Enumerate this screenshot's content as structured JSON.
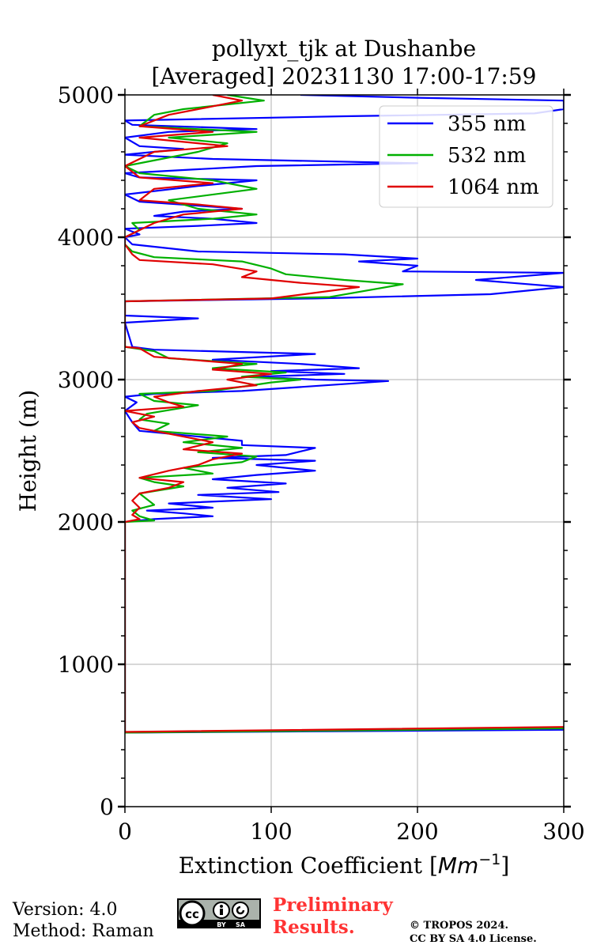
{
  "chart_data": {
    "type": "line",
    "title_line1": "pollyxt_tjk at Dushanbe",
    "title_line2": "[Averaged] 20231130 17:00-17:59",
    "xlabel_text": "Extinction Coefficient [",
    "xlabel_unit": "Mm",
    "xlabel_exp": "−1",
    "xlabel_close": "]",
    "ylabel": "Height (m)",
    "xlim": [
      0,
      300
    ],
    "ylim": [
      0,
      5000
    ],
    "xticks": [
      0,
      100,
      200,
      300
    ],
    "yticks": [
      0,
      1000,
      2000,
      3000,
      4000,
      5000
    ],
    "grid": true,
    "legend_position": "upper-right",
    "series": [
      {
        "name": "355 nm",
        "color": "#0000ff",
        "points": [
          [
            300,
            540
          ],
          [
            0,
            520
          ],
          [
            0,
            2000
          ],
          [
            20,
            2020
          ],
          [
            60,
            2040
          ],
          [
            40,
            2060
          ],
          [
            15,
            2080
          ],
          [
            60,
            2100
          ],
          [
            30,
            2130
          ],
          [
            100,
            2160
          ],
          [
            50,
            2190
          ],
          [
            105,
            2210
          ],
          [
            70,
            2240
          ],
          [
            110,
            2270
          ],
          [
            60,
            2300
          ],
          [
            90,
            2330
          ],
          [
            130,
            2360
          ],
          [
            90,
            2400
          ],
          [
            130,
            2430
          ],
          [
            60,
            2450
          ],
          [
            110,
            2470
          ],
          [
            130,
            2520
          ],
          [
            80,
            2540
          ],
          [
            80,
            2570
          ],
          [
            10,
            2640
          ],
          [
            5,
            2700
          ],
          [
            0,
            2780
          ],
          [
            8,
            2840
          ],
          [
            0,
            2880
          ],
          [
            20,
            2900
          ],
          [
            80,
            2920
          ],
          [
            180,
            2990
          ],
          [
            130,
            3000
          ],
          [
            90,
            3020
          ],
          [
            150,
            3040
          ],
          [
            100,
            3060
          ],
          [
            160,
            3080
          ],
          [
            120,
            3110
          ],
          [
            60,
            3140
          ],
          [
            130,
            3180
          ],
          [
            20,
            3210
          ],
          [
            5,
            3230
          ],
          [
            0,
            3400
          ],
          [
            50,
            3430
          ],
          [
            0,
            3450
          ],
          [
            0,
            3550
          ],
          [
            130,
            3570
          ],
          [
            250,
            3600
          ],
          [
            300,
            3650
          ],
          [
            240,
            3700
          ],
          [
            300,
            3750
          ],
          [
            190,
            3760
          ],
          [
            200,
            3800
          ],
          [
            160,
            3830
          ],
          [
            200,
            3850
          ],
          [
            150,
            3880
          ],
          [
            50,
            3900
          ],
          [
            5,
            3950
          ],
          [
            0,
            4000
          ],
          [
            10,
            4020
          ],
          [
            0,
            4060
          ],
          [
            50,
            4080
          ],
          [
            90,
            4100
          ],
          [
            60,
            4130
          ],
          [
            20,
            4150
          ],
          [
            40,
            4180
          ],
          [
            80,
            4200
          ],
          [
            10,
            4250
          ],
          [
            0,
            4300
          ],
          [
            50,
            4360
          ],
          [
            90,
            4400
          ],
          [
            10,
            4420
          ],
          [
            0,
            4450
          ],
          [
            90,
            4500
          ],
          [
            200,
            4520
          ],
          [
            60,
            4550
          ],
          [
            0,
            4580
          ],
          [
            40,
            4620
          ],
          [
            10,
            4640
          ],
          [
            0,
            4700
          ],
          [
            30,
            4740
          ],
          [
            90,
            4760
          ],
          [
            5,
            4790
          ],
          [
            0,
            4820
          ],
          [
            150,
            4850
          ],
          [
            280,
            4870
          ],
          [
            300,
            4900
          ],
          [
            300,
            4960
          ],
          [
            200,
            4980
          ],
          [
            120,
            5000
          ]
        ]
      },
      {
        "name": "532 nm",
        "color": "#00b000",
        "points": [
          [
            300,
            550
          ],
          [
            0,
            520
          ],
          [
            0,
            2000
          ],
          [
            20,
            2010
          ],
          [
            10,
            2040
          ],
          [
            5,
            2080
          ],
          [
            20,
            2120
          ],
          [
            15,
            2160
          ],
          [
            10,
            2200
          ],
          [
            40,
            2250
          ],
          [
            20,
            2280
          ],
          [
            10,
            2310
          ],
          [
            60,
            2340
          ],
          [
            40,
            2380
          ],
          [
            80,
            2420
          ],
          [
            90,
            2460
          ],
          [
            50,
            2490
          ],
          [
            80,
            2520
          ],
          [
            40,
            2560
          ],
          [
            70,
            2600
          ],
          [
            20,
            2640
          ],
          [
            30,
            2690
          ],
          [
            10,
            2720
          ],
          [
            15,
            2760
          ],
          [
            50,
            2820
          ],
          [
            20,
            2850
          ],
          [
            10,
            2900
          ],
          [
            60,
            2920
          ],
          [
            100,
            2980
          ],
          [
            120,
            3000
          ],
          [
            80,
            3020
          ],
          [
            110,
            3050
          ],
          [
            60,
            3080
          ],
          [
            90,
            3110
          ],
          [
            30,
            3150
          ],
          [
            20,
            3200
          ],
          [
            0,
            3230
          ],
          [
            0,
            3550
          ],
          [
            140,
            3580
          ],
          [
            190,
            3670
          ],
          [
            150,
            3700
          ],
          [
            110,
            3740
          ],
          [
            100,
            3780
          ],
          [
            80,
            3830
          ],
          [
            20,
            3860
          ],
          [
            5,
            3900
          ],
          [
            0,
            3950
          ],
          [
            0,
            4000
          ],
          [
            10,
            4050
          ],
          [
            5,
            4100
          ],
          [
            60,
            4130
          ],
          [
            90,
            4160
          ],
          [
            50,
            4200
          ],
          [
            30,
            4260
          ],
          [
            90,
            4340
          ],
          [
            60,
            4400
          ],
          [
            10,
            4450
          ],
          [
            0,
            4500
          ],
          [
            50,
            4600
          ],
          [
            70,
            4660
          ],
          [
            30,
            4700
          ],
          [
            90,
            4740
          ],
          [
            10,
            4780
          ],
          [
            20,
            4860
          ],
          [
            40,
            4900
          ],
          [
            95,
            4960
          ],
          [
            70,
            5000
          ]
        ]
      },
      {
        "name": "1064 nm",
        "color": "#e00000",
        "points": [
          [
            300,
            560
          ],
          [
            0,
            525
          ],
          [
            0,
            2000
          ],
          [
            10,
            2020
          ],
          [
            5,
            2050
          ],
          [
            10,
            2100
          ],
          [
            5,
            2150
          ],
          [
            10,
            2200
          ],
          [
            30,
            2240
          ],
          [
            40,
            2280
          ],
          [
            10,
            2310
          ],
          [
            30,
            2360
          ],
          [
            50,
            2400
          ],
          [
            60,
            2440
          ],
          [
            80,
            2480
          ],
          [
            40,
            2510
          ],
          [
            60,
            2560
          ],
          [
            30,
            2620
          ],
          [
            10,
            2660
          ],
          [
            5,
            2700
          ],
          [
            20,
            2740
          ],
          [
            0,
            2780
          ],
          [
            40,
            2810
          ],
          [
            30,
            2840
          ],
          [
            20,
            2880
          ],
          [
            50,
            2920
          ],
          [
            90,
            2960
          ],
          [
            70,
            3000
          ],
          [
            100,
            3040
          ],
          [
            60,
            3070
          ],
          [
            80,
            3110
          ],
          [
            20,
            3160
          ],
          [
            10,
            3220
          ],
          [
            0,
            3230
          ],
          [
            0,
            3550
          ],
          [
            100,
            3570
          ],
          [
            160,
            3650
          ],
          [
            120,
            3680
          ],
          [
            80,
            3720
          ],
          [
            90,
            3760
          ],
          [
            60,
            3810
          ],
          [
            10,
            3840
          ],
          [
            5,
            3880
          ],
          [
            0,
            3950
          ],
          [
            0,
            4000
          ],
          [
            20,
            4100
          ],
          [
            40,
            4160
          ],
          [
            80,
            4200
          ],
          [
            50,
            4230
          ],
          [
            10,
            4260
          ],
          [
            20,
            4340
          ],
          [
            60,
            4380
          ],
          [
            10,
            4420
          ],
          [
            0,
            4500
          ],
          [
            20,
            4600
          ],
          [
            70,
            4640
          ],
          [
            10,
            4700
          ],
          [
            60,
            4740
          ],
          [
            10,
            4780
          ],
          [
            30,
            4860
          ],
          [
            50,
            4900
          ],
          [
            80,
            4960
          ],
          [
            60,
            5000
          ]
        ]
      }
    ]
  },
  "footer": {
    "version": "Version: 4.0",
    "method": "Method: Raman",
    "preliminary_line1": "Preliminary",
    "preliminary_line2": "Results.",
    "copyright_line1": "© TROPOS 2024.",
    "copyright_line2": "CC BY SA 4.0 License.",
    "license_badge": {
      "cc": "cc",
      "by": "BY",
      "sa": "SA"
    }
  }
}
